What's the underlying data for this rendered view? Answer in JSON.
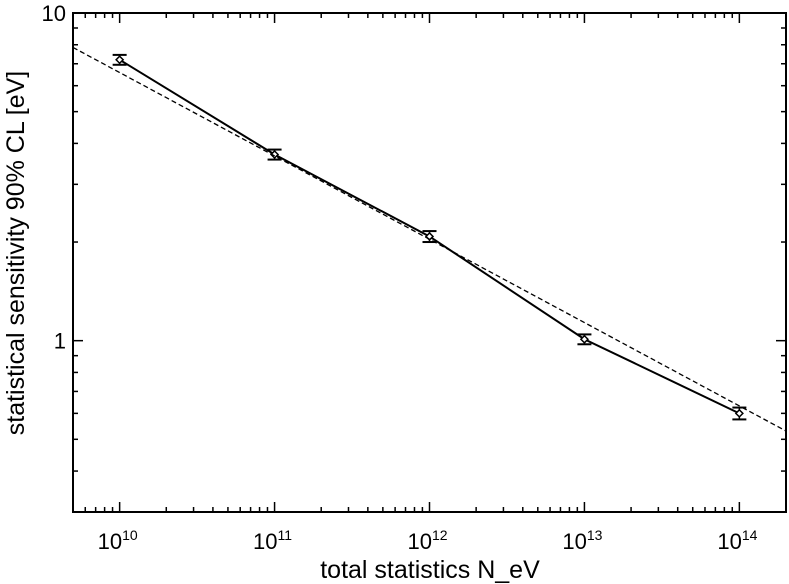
{
  "chart_data": {
    "type": "line",
    "title": "",
    "xlabel": "total statistics N_eV",
    "ylabel": "statistical sensitivity 90% CL [eV]",
    "xscale": "log",
    "yscale": "log",
    "xlim": [
      5000000000.0,
      200000000000000.0
    ],
    "ylim": [
      0.3,
      10
    ],
    "grid": false,
    "legend": "none",
    "x_ticks": [
      {
        "value": 10000000000.0,
        "base": "10",
        "exp": "10"
      },
      {
        "value": 100000000000.0,
        "base": "10",
        "exp": "11"
      },
      {
        "value": 1000000000000.0,
        "base": "10",
        "exp": "12"
      },
      {
        "value": 10000000000000.0,
        "base": "10",
        "exp": "13"
      },
      {
        "value": 100000000000000.0,
        "base": "10",
        "exp": "14"
      }
    ],
    "y_ticks": [
      {
        "value": 1,
        "label": "1"
      },
      {
        "value": 10,
        "label": "10"
      }
    ],
    "series": [
      {
        "style": "solid-with-markers",
        "color": "#000000",
        "x": [
          10000000000.0,
          100000000000.0,
          1000000000000.0,
          10000000000000.0,
          100000000000000.0
        ],
        "y": [
          7.2,
          3.7,
          2.08,
          1.01,
          0.6
        ],
        "err": [
          0.25,
          0.13,
          0.08,
          0.035,
          0.025
        ]
      },
      {
        "style": "dashed",
        "color": "#000000",
        "x": [
          5000000000.0,
          200000000000000.0
        ],
        "y": [
          7.85,
          0.53
        ]
      }
    ]
  }
}
